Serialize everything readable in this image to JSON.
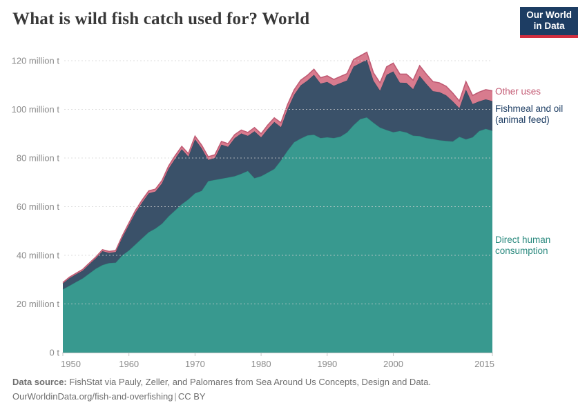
{
  "header": {
    "title": "What is wild fish catch used for? World",
    "logo": {
      "line1": "Our World",
      "line2": "in Data"
    }
  },
  "legend": {
    "other": "Other uses",
    "fishmeal_line1": "Fishmeal and oil",
    "fishmeal_line2": "(animal feed)",
    "dhc_line1": "Direct human",
    "dhc_line2": "consumption"
  },
  "footer": {
    "source_label": "Data source:",
    "source_text": "FishStat via Pauly, Zeller, and Palomares from Sea Around Us Concepts, Design and Data.",
    "link": "OurWorldinData.org/fish-and-overfishing",
    "separator": "|",
    "license": "CC BY"
  },
  "colors": {
    "title": "#383838",
    "axis_text": "#8a8a8a",
    "grid": "#d2d2d2",
    "baseline": "#c4c4c4",
    "footer_text": "#6e6e6e",
    "logo_bg": "#1d3d63",
    "logo_red": "#d22e3f",
    "legend_other": "#c45c75",
    "legend_fishmeal": "#1d3d63",
    "legend_dhc": "#2b8a7f"
  },
  "chart_data": {
    "type": "area",
    "stacked": true,
    "title": "What is wild fish catch used for? World",
    "unit": "million t",
    "grid": "dashed",
    "legend_position": "right",
    "x_range": [
      1950,
      2015
    ],
    "x_step": 1,
    "ylim": [
      0,
      120
    ],
    "xticks": [
      1950,
      1960,
      1970,
      1980,
      1990,
      2000,
      2015
    ],
    "yticks": [
      {
        "value": 0,
        "label": "0 t"
      },
      {
        "value": 20,
        "label": "20 million t"
      },
      {
        "value": 40,
        "label": "40 million t"
      },
      {
        "value": 60,
        "label": "60 million t"
      },
      {
        "value": 80,
        "label": "80 million t"
      },
      {
        "value": 100,
        "label": "100 million t"
      },
      {
        "value": 120,
        "label": "120 million t"
      }
    ],
    "series": [
      {
        "id": "direct-human-consumption",
        "name": "Direct human consumption",
        "color": "#38998f",
        "line_color": "#2f8f83",
        "values": [
          26.0,
          27.5,
          29.0,
          30.5,
          32.5,
          34.5,
          36.0,
          36.8,
          37.0,
          40.0,
          42.0,
          44.5,
          47.0,
          49.5,
          51.0,
          53.0,
          56.0,
          58.5,
          61.0,
          63.0,
          65.5,
          66.5,
          70.5,
          71.0,
          71.5,
          72.0,
          72.5,
          73.5,
          74.7,
          71.7,
          72.5,
          74.0,
          75.5,
          79.0,
          83.0,
          86.5,
          88.0,
          89.3,
          89.6,
          88.2,
          88.5,
          88.2,
          88.8,
          90.5,
          93.5,
          96.0,
          96.7,
          94.5,
          92.5,
          91.5,
          90.6,
          91.1,
          90.5,
          89.2,
          89.0,
          88.2,
          87.8,
          87.3,
          87.0,
          86.8,
          88.7,
          87.7,
          88.5,
          91.1,
          92.0,
          91.2
        ]
      },
      {
        "id": "fishmeal-and-oil",
        "name": "Fishmeal and oil (animal feed)",
        "color": "#3a5169",
        "line_color": "#33485e",
        "values": [
          2.4,
          3.1,
          3.2,
          3.2,
          3.8,
          4.3,
          5.7,
          4.2,
          4.4,
          7.3,
          10.5,
          13.1,
          14.7,
          16.0,
          15.2,
          16.6,
          19.6,
          21.3,
          22.6,
          17.6,
          22.2,
          17.5,
          8.7,
          9.0,
          14.0,
          12.6,
          15.7,
          16.6,
          14.4,
          19.3,
          16.0,
          17.9,
          19.3,
          13.7,
          17.1,
          19.5,
          21.9,
          22.5,
          24.6,
          22.4,
          22.8,
          21.5,
          22.0,
          21.4,
          24.1,
          23.0,
          23.7,
          17.3,
          15.2,
          22.7,
          25.0,
          19.9,
          20.4,
          19.1,
          24.8,
          22.3,
          19.7,
          19.8,
          18.8,
          16.5,
          11.8,
          20.4,
          13.7,
          12.2,
          12.1,
          12.2
        ]
      },
      {
        "id": "other-uses",
        "name": "Other uses",
        "color": "#d87b8e",
        "line_color": "#c05b74",
        "values": [
          0.4,
          0.4,
          0.4,
          0.5,
          0.5,
          0.5,
          0.6,
          0.6,
          0.6,
          0.7,
          0.8,
          0.9,
          1.0,
          1.0,
          1.0,
          1.1,
          1.1,
          1.2,
          1.2,
          1.2,
          1.3,
          1.3,
          1.3,
          1.3,
          1.3,
          1.3,
          1.4,
          1.4,
          1.4,
          1.5,
          1.5,
          1.6,
          1.7,
          1.8,
          1.9,
          2.0,
          2.1,
          2.2,
          2.3,
          2.4,
          2.5,
          2.6,
          2.7,
          2.8,
          2.9,
          3.0,
          3.1,
          3.2,
          3.2,
          3.3,
          3.4,
          3.5,
          3.6,
          3.7,
          4.2,
          4.0,
          3.9,
          3.8,
          3.7,
          3.4,
          2.9,
          3.3,
          3.5,
          3.8,
          4.0,
          4.2
        ]
      }
    ]
  }
}
